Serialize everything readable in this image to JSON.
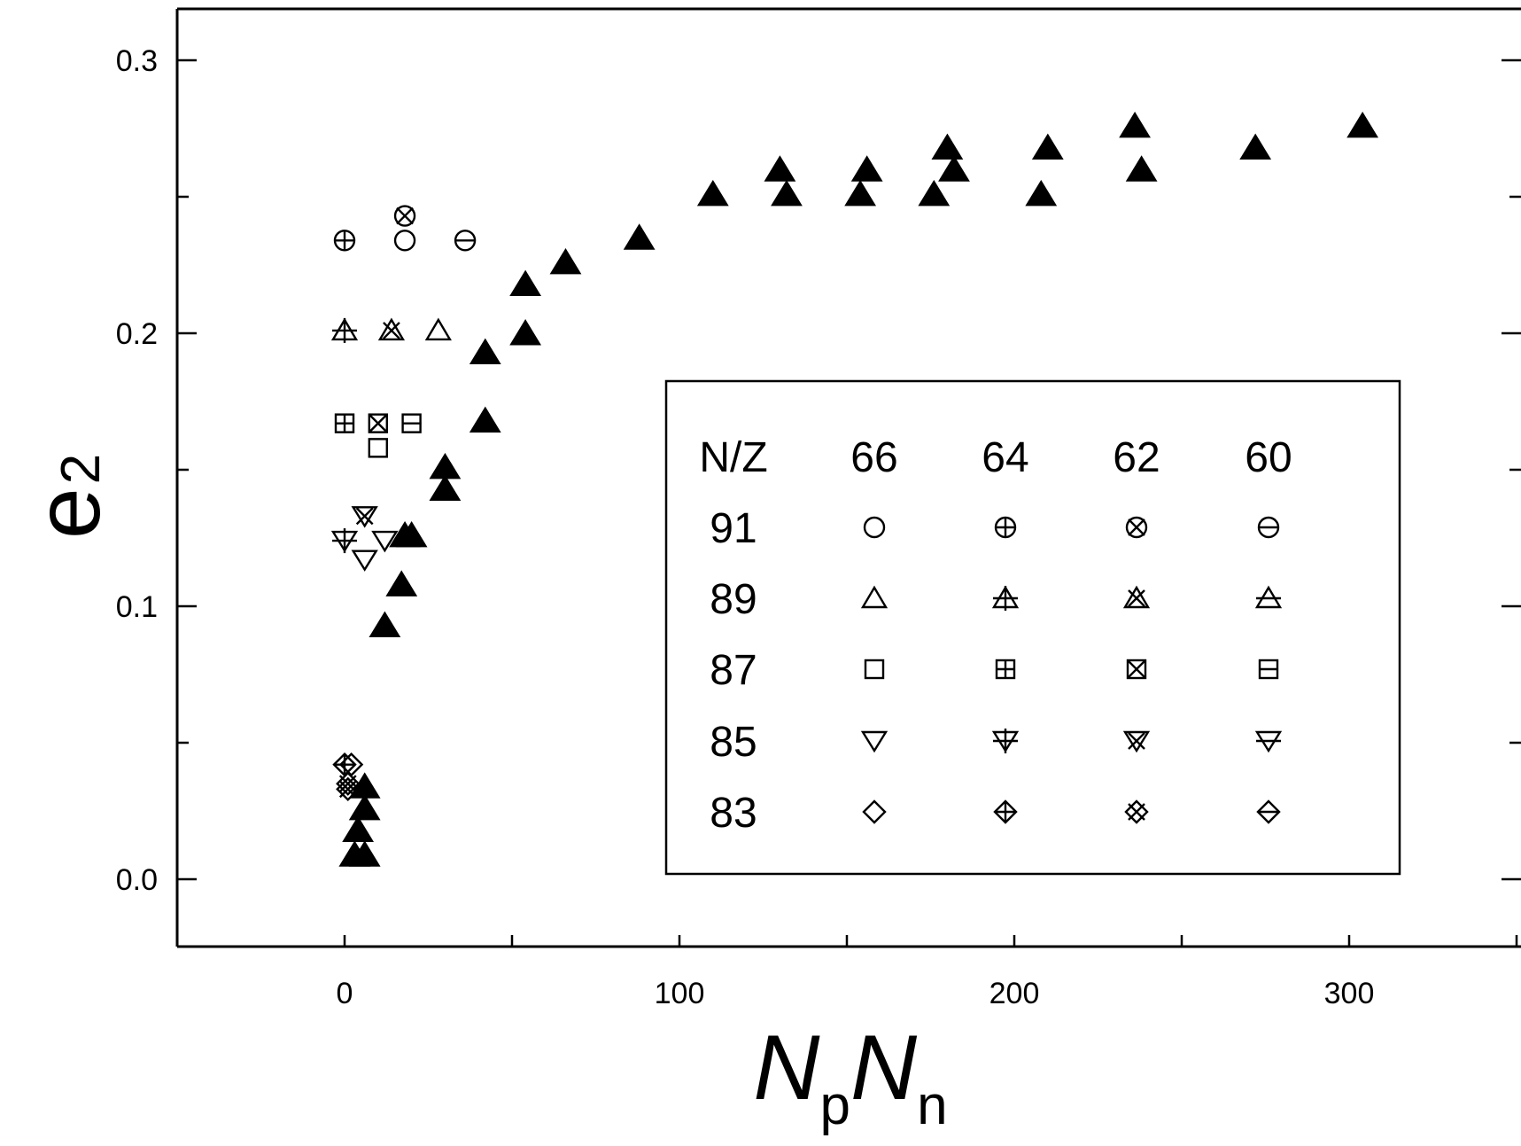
{
  "chart_data": {
    "type": "scatter",
    "title": "",
    "xlabel": {
      "main": "N",
      "sub1": "p",
      "main2": "N",
      "sub2": "n"
    },
    "ylabel": {
      "main": "e",
      "sub": "2"
    },
    "xlim": [
      -50,
      350
    ],
    "ylim": [
      -0.025,
      0.32
    ],
    "x_ticks": [
      0,
      100,
      200,
      300
    ],
    "x_tick_labels": [
      "0",
      "100",
      "200",
      "300"
    ],
    "x_minor_ticks": [
      50,
      150,
      250,
      350
    ],
    "y_ticks": [
      0.0,
      0.1,
      0.2,
      0.3
    ],
    "y_tick_labels": [
      "0.0",
      "0.1",
      "0.2",
      "0.3"
    ],
    "y_minor_ticks": [
      0.05,
      0.15,
      0.25
    ],
    "grid": false,
    "legend_position": "lower-right",
    "legend": {
      "header": [
        "N/Z",
        "66",
        "64",
        "62",
        "60"
      ],
      "rows": [
        {
          "label": "91",
          "markers": [
            "circle",
            "circle-plus",
            "circle-x",
            "circle-minus"
          ]
        },
        {
          "label": "89",
          "markers": [
            "triangle",
            "triangle-plus",
            "triangle-x",
            "triangle-minus"
          ]
        },
        {
          "label": "87",
          "markers": [
            "square",
            "square-plus",
            "square-x",
            "square-minus"
          ]
        },
        {
          "label": "85",
          "markers": [
            "down-triangle",
            "down-triangle-plus",
            "down-triangle-x",
            "down-triangle-minus"
          ]
        },
        {
          "label": "83",
          "markers": [
            "diamond",
            "diamond-plus",
            "diamond-x",
            "diamond-minus"
          ]
        }
      ]
    },
    "series": [
      {
        "marker": "filled-triangle",
        "points": [
          [
            3,
            0.009
          ],
          [
            6,
            0.009
          ],
          [
            4,
            0.018
          ],
          [
            6,
            0.026
          ],
          [
            6,
            0.034
          ],
          [
            12,
            0.093
          ],
          [
            17,
            0.108
          ],
          [
            18,
            0.126
          ],
          [
            20,
            0.126
          ],
          [
            30,
            0.143
          ],
          [
            30,
            0.151
          ],
          [
            42,
            0.168
          ],
          [
            42,
            0.193
          ],
          [
            54,
            0.2
          ],
          [
            54,
            0.218
          ],
          [
            66,
            0.226
          ],
          [
            88,
            0.235
          ],
          [
            110,
            0.251
          ],
          [
            130,
            0.26
          ],
          [
            132,
            0.251
          ],
          [
            154,
            0.251
          ],
          [
            156,
            0.26
          ],
          [
            176,
            0.251
          ],
          [
            180,
            0.268
          ],
          [
            182,
            0.26
          ],
          [
            208,
            0.251
          ],
          [
            210,
            0.268
          ],
          [
            236,
            0.276
          ],
          [
            238,
            0.26
          ],
          [
            272,
            0.268
          ],
          [
            304,
            0.276
          ]
        ]
      },
      {
        "marker": "circle",
        "points": [
          [
            18,
            0.234
          ]
        ]
      },
      {
        "marker": "circle-plus",
        "points": [
          [
            0,
            0.234
          ]
        ]
      },
      {
        "marker": "circle-x",
        "points": [
          [
            18,
            0.243
          ]
        ]
      },
      {
        "marker": "circle-minus",
        "points": [
          [
            36,
            0.234
          ]
        ]
      },
      {
        "marker": "triangle",
        "points": [
          [
            28,
            0.201
          ]
        ]
      },
      {
        "marker": "triangle-plus",
        "points": [
          [
            0,
            0.201
          ]
        ]
      },
      {
        "marker": "triangle-x",
        "points": [
          [
            14,
            0.201
          ]
        ]
      },
      {
        "marker": "square",
        "points": [
          [
            10,
            0.158
          ]
        ]
      },
      {
        "marker": "square-plus",
        "points": [
          [
            0,
            0.167
          ]
        ]
      },
      {
        "marker": "square-x",
        "points": [
          [
            10,
            0.167
          ]
        ]
      },
      {
        "marker": "square-minus",
        "points": [
          [
            20,
            0.167
          ]
        ]
      },
      {
        "marker": "down-triangle",
        "points": [
          [
            6,
            0.117
          ],
          [
            12,
            0.124
          ]
        ]
      },
      {
        "marker": "down-triangle-plus",
        "points": [
          [
            0,
            0.124
          ]
        ]
      },
      {
        "marker": "down-triangle-x",
        "points": [
          [
            6,
            0.133
          ]
        ]
      },
      {
        "marker": "diamond",
        "points": [
          [
            2,
            0.042
          ]
        ]
      },
      {
        "marker": "diamond-plus",
        "points": [
          [
            0,
            0.042
          ]
        ]
      },
      {
        "marker": "diamond-x",
        "points": [
          [
            1,
            0.035
          ],
          [
            1,
            0.033
          ]
        ]
      }
    ]
  }
}
